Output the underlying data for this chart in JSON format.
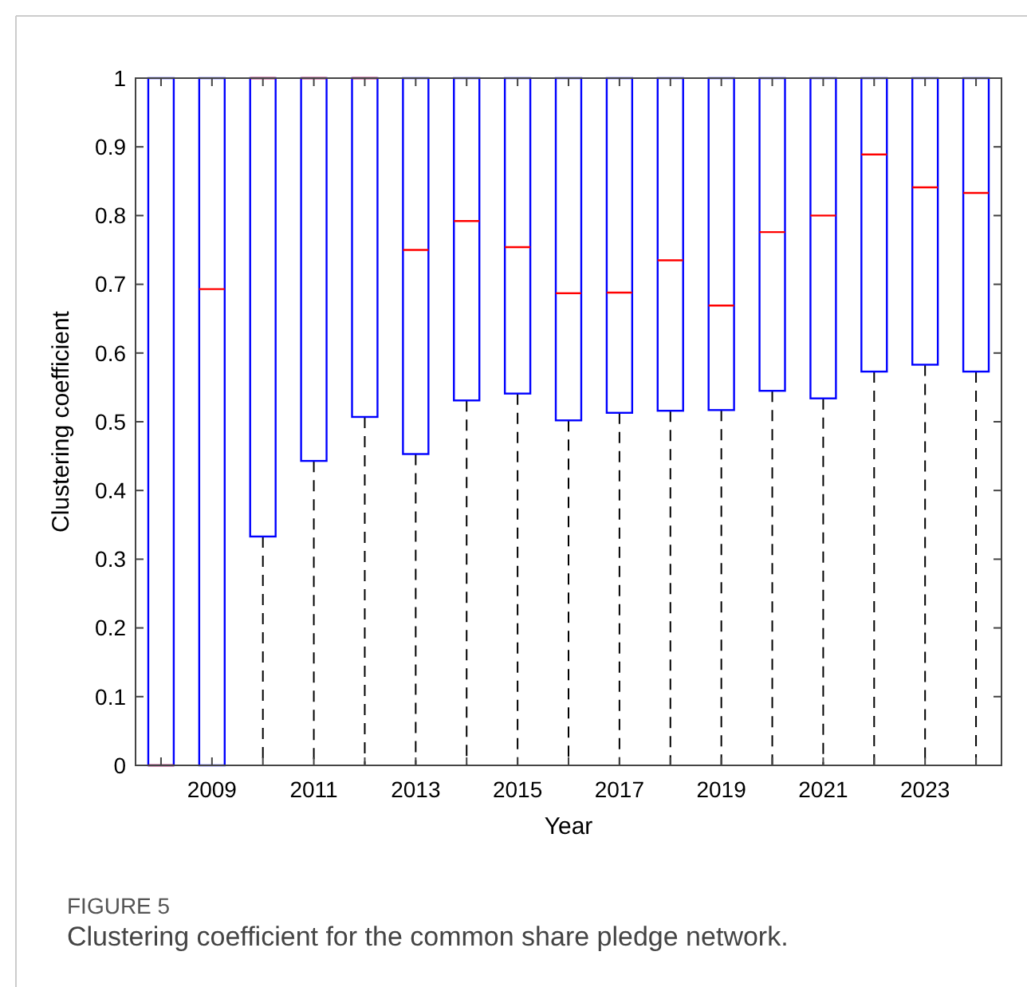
{
  "chart_data": {
    "type": "box",
    "xlabel": "Year",
    "ylabel": "Clustering coefficient",
    "categories": [
      null,
      "2009",
      null,
      "2011",
      null,
      "2013",
      null,
      "2015",
      null,
      "2017",
      null,
      "2019",
      null,
      "2021",
      null,
      "2023",
      null
    ],
    "color": "#0000ff",
    "boxes": [
      {
        "low": 0,
        "q1": 0,
        "median": 0,
        "q3": 1,
        "high": 1
      },
      {
        "low": 0,
        "q1": 0,
        "median": 0.693,
        "q3": 1,
        "high": 1
      },
      {
        "low": 0,
        "q1": 0.333,
        "median": 1,
        "q3": 1,
        "high": 1
      },
      {
        "low": 0,
        "q1": 0.443,
        "median": 1,
        "q3": 1,
        "high": 1
      },
      {
        "low": 0,
        "q1": 0.507,
        "median": 1,
        "q3": 1,
        "high": 1
      },
      {
        "low": 0,
        "q1": 0.453,
        "median": 0.75,
        "q3": 1,
        "high": 1
      },
      {
        "low": 0,
        "q1": 0.531,
        "median": 0.792,
        "q3": 1,
        "high": 1
      },
      {
        "low": 0,
        "q1": 0.541,
        "median": 0.754,
        "q3": 1,
        "high": 1
      },
      {
        "low": 0,
        "q1": 0.502,
        "median": 0.687,
        "q3": 1,
        "high": 1
      },
      {
        "low": 0,
        "q1": 0.513,
        "median": 0.688,
        "q3": 1,
        "high": 1
      },
      {
        "low": 0,
        "q1": 0.516,
        "median": 0.735,
        "q3": 1,
        "high": 1
      },
      {
        "low": 0,
        "q1": 0.517,
        "median": 0.669,
        "q3": 1,
        "high": 1
      },
      {
        "low": 0,
        "q1": 0.545,
        "median": 0.776,
        "q3": 1,
        "high": 1
      },
      {
        "low": 0,
        "q1": 0.534,
        "median": 0.8,
        "q3": 1,
        "high": 1
      },
      {
        "low": 0,
        "q1": 0.573,
        "median": 0.889,
        "q3": 1,
        "high": 1
      },
      {
        "low": 0,
        "q1": 0.583,
        "median": 0.841,
        "q3": 1,
        "high": 1
      },
      {
        "low": 0,
        "q1": 0.573,
        "median": 0.833,
        "q3": 1,
        "high": 1
      }
    ],
    "ylim": [
      0,
      1
    ],
    "yticks": [
      0,
      0.1,
      0.2,
      0.3,
      0.4,
      0.5,
      0.6,
      0.7,
      0.8,
      0.9,
      1
    ],
    "grid": false,
    "annotations": [
      "FIGURE 5",
      "Clustering coefficient for the common share pledge network."
    ]
  }
}
